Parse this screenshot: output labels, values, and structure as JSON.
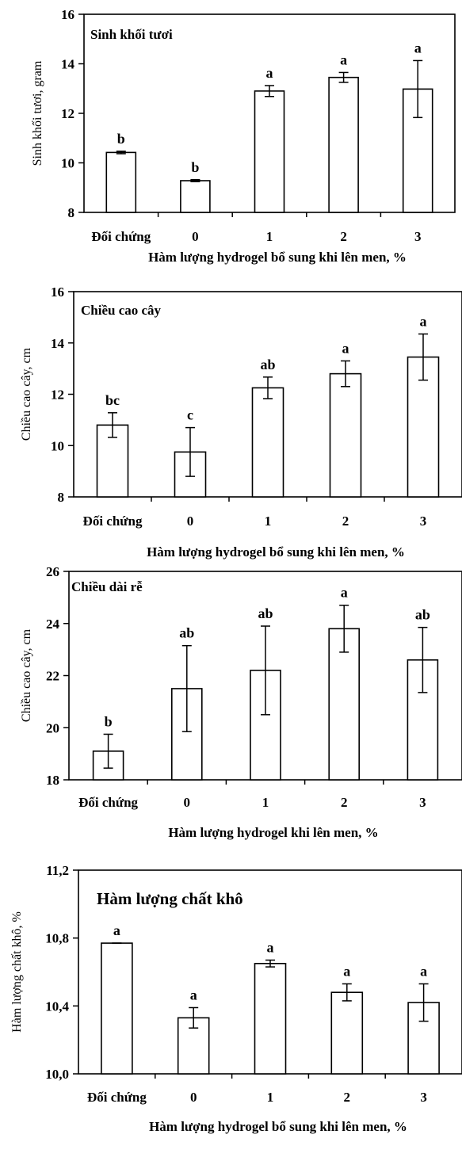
{
  "chart_data": [
    {
      "type": "bar",
      "title": "Sinh khối tươi",
      "ylabel": "Sinh khối tươi, gram",
      "xlabel": "Hàm lượng hydrogel bổ sung khi lên men, %",
      "categories": [
        "Đối chứng",
        "0",
        "1",
        "2",
        "3"
      ],
      "values": [
        10.42,
        9.28,
        12.9,
        13.45,
        12.98
      ],
      "errors": [
        0.05,
        0.04,
        0.22,
        0.2,
        1.15
      ],
      "significance": [
        "b",
        "b",
        "a",
        "a",
        "a"
      ],
      "ylim": [
        8,
        16
      ],
      "yticks": [
        "8",
        "10",
        "12",
        "14",
        "16"
      ]
    },
    {
      "type": "bar",
      "title": "Chiều cao cây",
      "ylabel": "Chiều cao cây, cm",
      "xlabel": "Hàm lượng hydrogel bổ sung khi lên men, %",
      "categories": [
        "Đối chứng",
        "0",
        "1",
        "2",
        "3"
      ],
      "values": [
        10.8,
        9.75,
        12.25,
        12.8,
        13.45
      ],
      "errors": [
        0.48,
        0.95,
        0.42,
        0.5,
        0.9
      ],
      "significance": [
        "bc",
        "c",
        "ab",
        "a",
        "a"
      ],
      "ylim": [
        8,
        16
      ],
      "yticks": [
        "8",
        "10",
        "12",
        "14",
        "16"
      ]
    },
    {
      "type": "bar",
      "title": "Chiều dài rễ",
      "ylabel": "Chiều cao cây, cm",
      "xlabel": "Hàm lượng hydrogel khi lên men, %",
      "categories": [
        "Đối chứng",
        "0",
        "1",
        "2",
        "3"
      ],
      "values": [
        19.1,
        21.5,
        22.2,
        23.8,
        22.6
      ],
      "errors": [
        0.65,
        1.65,
        1.7,
        0.9,
        1.25
      ],
      "significance": [
        "b",
        "ab",
        "ab",
        "a",
        "ab"
      ],
      "ylim": [
        18,
        26
      ],
      "yticks": [
        "18",
        "20",
        "22",
        "24",
        "26"
      ]
    },
    {
      "type": "bar",
      "title": "Hàm lượng chất khô",
      "ylabel": "Hàm lượng chất khô, %",
      "xlabel": "Hàm lượng hydrogel bổ sung khi lên men, %",
      "categories": [
        "Đối chứng",
        "0",
        "1",
        "2",
        "3"
      ],
      "values": [
        10.77,
        10.33,
        10.65,
        10.48,
        10.42
      ],
      "errors": [
        0.0,
        0.06,
        0.02,
        0.05,
        0.11
      ],
      "significance": [
        "a",
        "a",
        "a",
        "a",
        "a"
      ],
      "ylim": [
        10.0,
        11.2
      ],
      "yticks": [
        "10,0",
        "10,4",
        "10,8",
        "11,2"
      ]
    }
  ]
}
